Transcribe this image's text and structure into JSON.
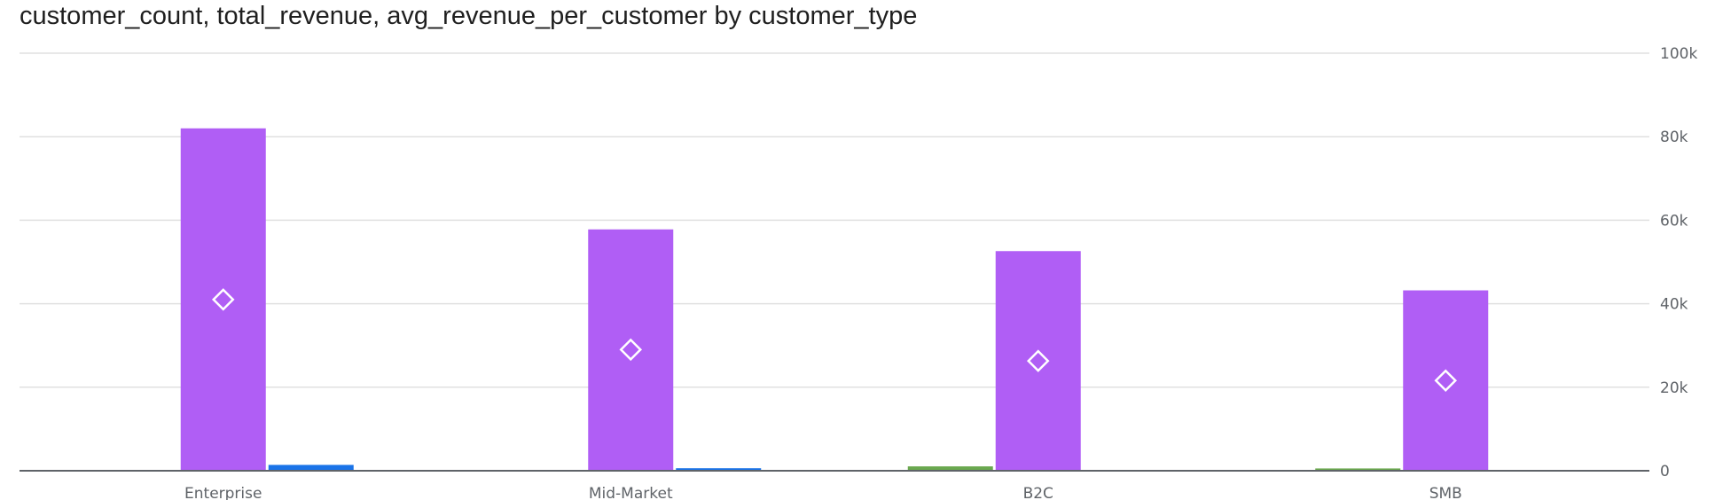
{
  "chart_data": {
    "type": "bar",
    "title": "customer_count, total_revenue, avg_revenue_per_customer by customer_type",
    "categories": [
      "Enterprise",
      "Mid-Market",
      "B2C",
      "SMB"
    ],
    "series": [
      {
        "name": "customer_count",
        "mark": "bar",
        "color": "#6aa84f",
        "values": [
          0,
          0,
          1050,
          550
        ]
      },
      {
        "name": "total_revenue",
        "mark": "bar",
        "color": "#b05ef5",
        "values": [
          82000,
          57800,
          52600,
          43200
        ]
      },
      {
        "name": "customer_count_2",
        "mark": "bar",
        "color": "#1a73e8",
        "values": [
          1400,
          600,
          0,
          0
        ]
      },
      {
        "name": "avg_revenue_per_customer",
        "mark": "point",
        "color": "#ffffff",
        "values": [
          41000,
          29000,
          26300,
          21600
        ]
      }
    ],
    "y_axis": {
      "side": "right",
      "ylim": [
        0,
        100000
      ],
      "ticks": [
        0,
        20000,
        40000,
        60000,
        80000,
        100000
      ],
      "tick_labels": [
        "0",
        "20k",
        "40k",
        "60k",
        "80k",
        "100k"
      ]
    },
    "grid": true,
    "xlabel": "",
    "ylabel": ""
  }
}
